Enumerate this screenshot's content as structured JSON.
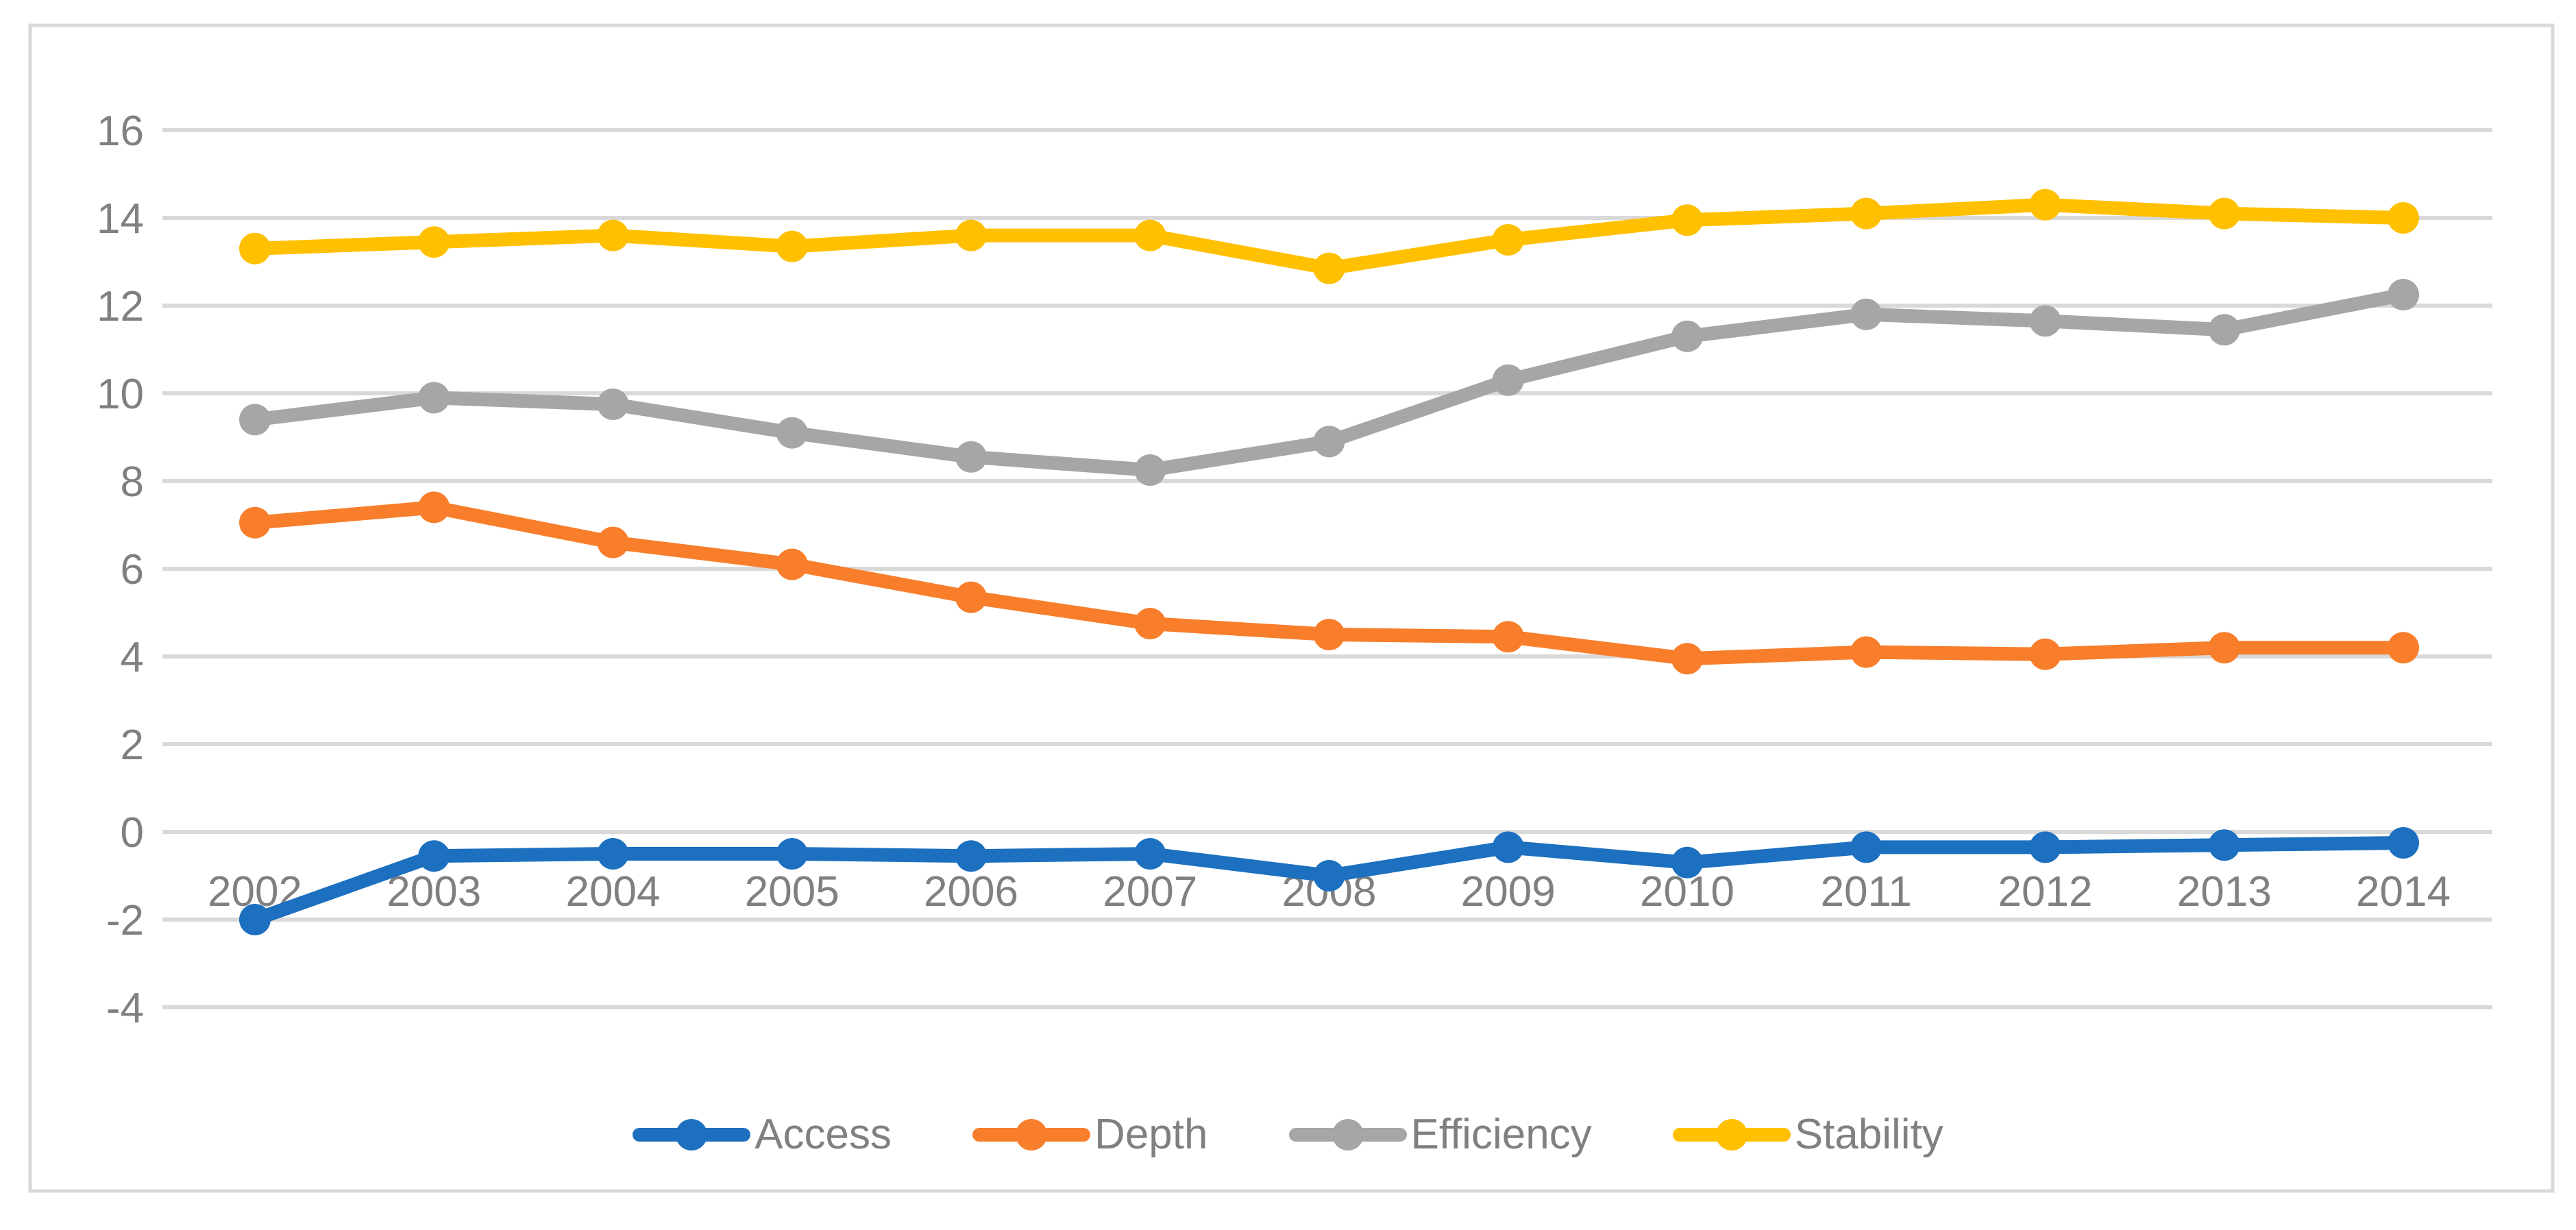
{
  "chart_data": {
    "type": "line",
    "title": "",
    "xlabel": "",
    "ylabel": "",
    "x": [
      "2002",
      "2003",
      "2004",
      "2005",
      "2006",
      "2007",
      "2008",
      "2009",
      "2010",
      "2011",
      "2012",
      "2013",
      "2014"
    ],
    "y_ticks": [
      "16",
      "14",
      "12",
      "10",
      "8",
      "6",
      "4",
      "2",
      "0",
      "-2",
      "-4"
    ],
    "ylim": [
      -4,
      16
    ],
    "grid": true,
    "legend_position": "bottom",
    "series": [
      {
        "name": "Access",
        "color": "#1C70BF",
        "values": [
          -2.0,
          -0.55,
          -0.5,
          -0.5,
          -0.55,
          -0.5,
          -1.0,
          -0.35,
          -0.7,
          -0.35,
          -0.35,
          -0.3,
          -0.25
        ]
      },
      {
        "name": "Depth",
        "color": "#F87E2B",
        "values": [
          7.05,
          7.4,
          6.6,
          6.1,
          5.35,
          4.75,
          4.5,
          4.45,
          3.95,
          4.1,
          4.05,
          4.2,
          4.2
        ]
      },
      {
        "name": "Efficiency",
        "color": "#A6A6A6",
        "values": [
          9.4,
          9.9,
          9.75,
          9.1,
          8.55,
          8.25,
          8.9,
          10.3,
          11.3,
          11.8,
          11.65,
          11.45,
          12.25
        ]
      },
      {
        "name": "Stability",
        "color": "#FFC000",
        "values": [
          13.3,
          13.45,
          13.6,
          13.35,
          13.6,
          13.6,
          12.85,
          13.5,
          13.95,
          14.1,
          14.3,
          14.1,
          14.0
        ]
      }
    ]
  },
  "colors": {
    "background": "#ffffff",
    "gridline": "#D9D9D9",
    "frame_border": "#D9D9D9",
    "axis_text": "#808080"
  }
}
